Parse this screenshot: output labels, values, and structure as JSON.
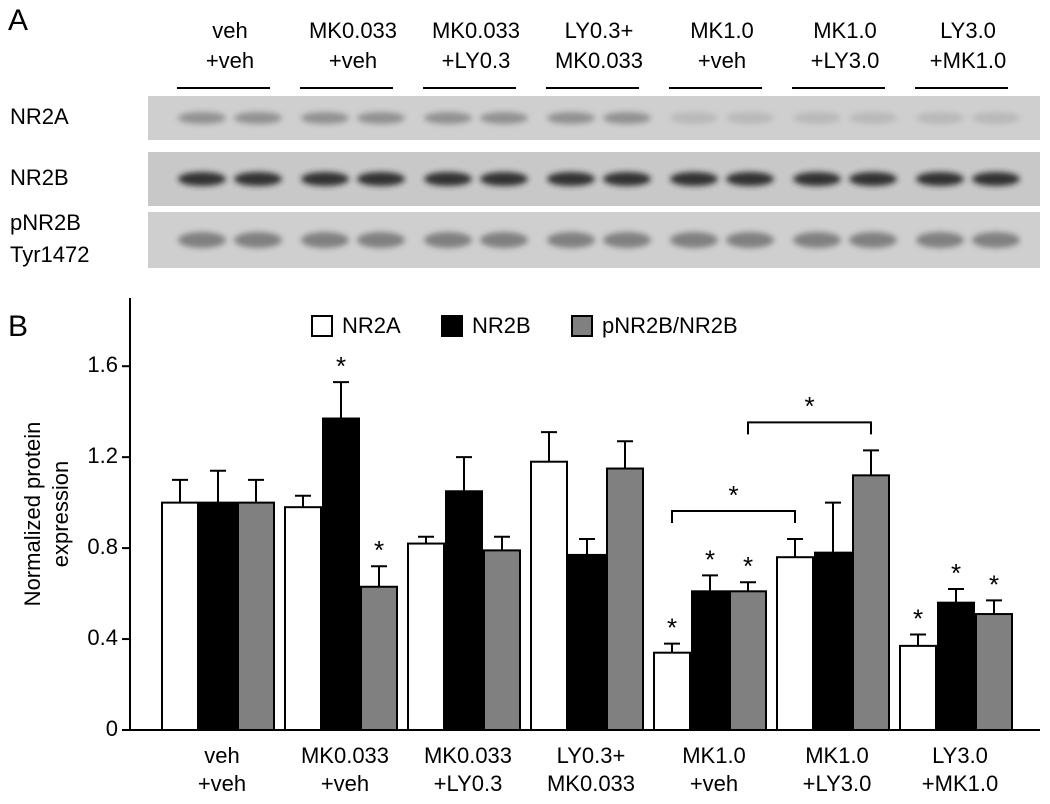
{
  "blot": {
    "panel_label": "A",
    "groups": [
      [
        "veh",
        "+veh"
      ],
      [
        "MK0.033",
        "+veh"
      ],
      [
        "MK0.033",
        "+LY0.3"
      ],
      [
        "LY0.3+",
        "MK0.033"
      ],
      [
        "MK1.0",
        "+veh"
      ],
      [
        "MK1.0",
        "+LY3.0"
      ],
      [
        "LY3.0",
        "+MK1.0"
      ]
    ],
    "rows": [
      [
        "NR2A"
      ],
      [
        "NR2B"
      ],
      [
        "pNR2B",
        "Tyr1472"
      ]
    ]
  },
  "chart_data": {
    "type": "bar",
    "panel_label": "B",
    "y_label": [
      "Normalized protein",
      "expression"
    ],
    "categories": [
      [
        "veh",
        "+veh"
      ],
      [
        "MK0.033",
        "+veh"
      ],
      [
        "MK0.033",
        "+LY0.3"
      ],
      [
        "LY0.3+",
        "MK0.033"
      ],
      [
        "MK1.0",
        "+veh"
      ],
      [
        "MK1.0",
        "+LY3.0"
      ],
      [
        "LY3.0",
        "+MK1.0"
      ]
    ],
    "series": [
      {
        "name": "NR2A",
        "color": "#ffffff",
        "values": [
          1.0,
          0.98,
          0.82,
          1.18,
          0.34,
          0.76,
          0.37
        ],
        "errors": [
          0.1,
          0.05,
          0.03,
          0.13,
          0.04,
          0.08,
          0.05
        ]
      },
      {
        "name": "NR2B",
        "color": "#000000",
        "values": [
          1.0,
          1.37,
          1.05,
          0.77,
          0.61,
          0.78,
          0.56
        ],
        "errors": [
          0.14,
          0.16,
          0.15,
          0.07,
          0.07,
          0.22,
          0.06
        ]
      },
      {
        "name": "pNR2B/NR2B",
        "color": "#808080",
        "values": [
          1.0,
          0.63,
          0.79,
          1.15,
          0.61,
          1.12,
          0.51
        ],
        "errors": [
          0.1,
          0.09,
          0.06,
          0.12,
          0.04,
          0.11,
          0.06
        ]
      }
    ],
    "ylim": [
      0,
      1.9
    ],
    "yticks": [
      0,
      0.4,
      0.8,
      1.2,
      1.6
    ],
    "grid": false,
    "significance": [
      {
        "text": "*",
        "series": 1,
        "category": 1
      },
      {
        "text": "*",
        "series": 2,
        "category": 1
      },
      {
        "text": "*",
        "series": 0,
        "category": 4
      },
      {
        "text": "*",
        "series": 1,
        "category": 4
      },
      {
        "text": "*",
        "series": 2,
        "category": 4
      },
      {
        "text": "*",
        "series": 0,
        "category": 6
      },
      {
        "text": "*",
        "series": 1,
        "category": 6
      },
      {
        "text": "*",
        "series": 2,
        "category": 6
      }
    ],
    "brackets": [
      {
        "text": "*",
        "series": 0,
        "categories": [
          4,
          5
        ]
      },
      {
        "text": "*",
        "series": 2,
        "categories": [
          4,
          5
        ]
      }
    ]
  }
}
